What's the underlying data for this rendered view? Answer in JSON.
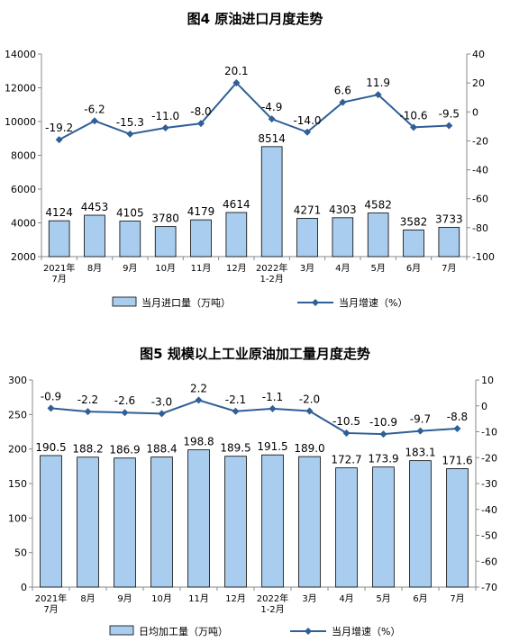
{
  "chart_data": [
    {
      "type": "bar",
      "title": "图4 原油进口月度走势",
      "categories": [
        "2021年\n7月",
        "8月",
        "9月",
        "10月",
        "11月",
        "12月",
        "2022年\n1-2月",
        "3月",
        "4月",
        "5月",
        "6月",
        "7月"
      ],
      "ylim": [
        2000,
        14000
      ],
      "yticks": [
        2000,
        4000,
        6000,
        8000,
        10000,
        12000,
        14000
      ],
      "y2lim": [
        -100,
        40
      ],
      "y2ticks": [
        -100,
        -80,
        -60,
        -40,
        -20,
        0,
        20,
        40
      ],
      "series": [
        {
          "name": "当月进口量（万吨）",
          "type": "bar",
          "axis": "left",
          "values": [
            4124,
            4453,
            4105,
            3780,
            4179,
            4614,
            8514,
            4271,
            4303,
            4582,
            3582,
            3733
          ],
          "labels": [
            "4124",
            "4453",
            "4105",
            "3780",
            "4179",
            "4614",
            "8514",
            "4271",
            "4303",
            "4582",
            "3582",
            "3733"
          ]
        },
        {
          "name": "当月增速（%）",
          "type": "line",
          "axis": "right",
          "values": [
            -19.2,
            -6.2,
            -15.3,
            -11.0,
            -8.0,
            20.1,
            -4.9,
            -14.0,
            6.6,
            11.9,
            -10.6,
            -9.5
          ],
          "labels": [
            "-19.2",
            "-6.2",
            "-15.3",
            "-11.0",
            "-8.0",
            "20.1",
            "-4.9",
            "-14.0",
            "6.6",
            "11.9",
            "-10.6",
            "-9.5"
          ]
        }
      ],
      "legend": "bottom"
    },
    {
      "type": "bar",
      "title": "图5 规模以上工业原油加工量月度走势",
      "categories": [
        "2021年\n7月",
        "8月",
        "9月",
        "10月",
        "11月",
        "12月",
        "2022年\n1-2月",
        "3月",
        "4月",
        "5月",
        "6月",
        "7月"
      ],
      "ylim": [
        0,
        300
      ],
      "yticks": [
        0,
        50,
        100,
        150,
        200,
        250,
        300
      ],
      "y2lim": [
        -70,
        10
      ],
      "y2ticks": [
        -70,
        -60,
        -50,
        -40,
        -30,
        -20,
        -10,
        0,
        10
      ],
      "series": [
        {
          "name": "日均加工量（万吨）",
          "type": "bar",
          "axis": "left",
          "values": [
            190.5,
            188.2,
            186.9,
            188.4,
            198.8,
            189.5,
            191.5,
            189.0,
            172.7,
            173.9,
            183.1,
            171.6
          ],
          "labels": [
            "190.5",
            "188.2",
            "186.9",
            "188.4",
            "198.8",
            "189.5",
            "191.5",
            "189.0",
            "172.7",
            "173.9",
            "183.1",
            "171.6"
          ]
        },
        {
          "name": "当月增速（%）",
          "type": "line",
          "axis": "right",
          "values": [
            -0.9,
            -2.2,
            -2.6,
            -3.0,
            2.2,
            -2.1,
            -1.1,
            -2.0,
            -10.5,
            -10.9,
            -9.7,
            -8.8
          ],
          "labels": [
            "-0.9",
            "-2.2",
            "-2.6",
            "-3.0",
            "2.2",
            "-2.1",
            "-1.1",
            "-2.0",
            "-10.5",
            "-10.9",
            "-9.7",
            "-8.8"
          ]
        }
      ],
      "legend": "bottom"
    }
  ],
  "colors": {
    "bar_fill": "#a9cdee",
    "bar_stroke": "#000000",
    "line": "#2e5f96",
    "axis": "#888888",
    "text": "#000000"
  }
}
